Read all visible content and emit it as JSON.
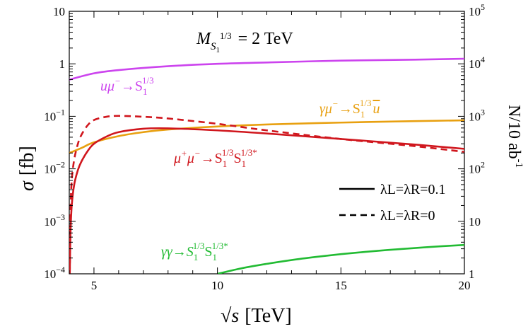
{
  "chart_data": {
    "type": "line",
    "title": "M_S1^1/3 = 2 TeV",
    "annotation": {
      "mass_label": {
        "symbol": "M",
        "sub": "S",
        "subsub": "1",
        "sup": "1/3",
        "rest": " = 2 TeV"
      }
    },
    "x_axis": {
      "label_main": "√s",
      "label_unit": "[TeV]",
      "range": [
        4,
        20
      ],
      "ticks": [
        5,
        10,
        15,
        20
      ],
      "tick_labels": [
        "5",
        "10",
        "15",
        "20"
      ]
    },
    "y_axis_left": {
      "label_main": "σ",
      "label_unit": "[fb]",
      "scale": "log",
      "range": [
        0.0001,
        10
      ],
      "ticks": [
        0.0001,
        0.001,
        0.01,
        0.1,
        1,
        10
      ],
      "tick_labels": [
        {
          "base": "10",
          "exp": "-4"
        },
        {
          "base": "10",
          "exp": "-3"
        },
        {
          "base": "10",
          "exp": "-2"
        },
        {
          "base": "10",
          "exp": "-1"
        },
        {
          "base": "1",
          "exp": ""
        },
        {
          "base": "10",
          "exp": ""
        }
      ]
    },
    "y_axis_right": {
      "label": "N/10 ab",
      "label_sup": "-1",
      "scale": "log",
      "range": [
        1,
        100000
      ],
      "ticks": [
        1,
        10,
        100,
        1000,
        10000,
        100000
      ],
      "tick_labels": [
        {
          "base": "1",
          "exp": ""
        },
        {
          "base": "10",
          "exp": ""
        },
        {
          "base": "10",
          "exp": "2"
        },
        {
          "base": "10",
          "exp": "3"
        },
        {
          "base": "10",
          "exp": "4"
        },
        {
          "base": "10",
          "exp": "5"
        }
      ]
    },
    "legend": {
      "placement": "lower-right",
      "entries": [
        {
          "style": "solid",
          "text": "λL=λR=0.1"
        },
        {
          "style": "dashed",
          "text": "λL=λR=0"
        }
      ]
    },
    "colors": {
      "magenta": "#cc44ee",
      "orange": "#e8a010",
      "red": "#d0161d",
      "green": "#22bb33"
    },
    "series": [
      {
        "key": "umu",
        "label": "uμ⁻→S₁^1/3",
        "label_parts": [
          "uμ",
          "−",
          "→S",
          "1",
          "1/3"
        ],
        "color": "#cc44ee",
        "style": "solid",
        "x": [
          4,
          5,
          6,
          8,
          10,
          12,
          15,
          18,
          20
        ],
        "y": [
          0.5,
          0.66,
          0.76,
          0.9,
          1.0,
          1.06,
          1.15,
          1.2,
          1.25
        ]
      },
      {
        "key": "gammamu",
        "label": "γμ⁻→S₁^1/3 ū",
        "label_parts": [
          "γμ",
          "−",
          "→S",
          "1",
          "1/3",
          "u"
        ],
        "color": "#e8a010",
        "style": "solid",
        "x": [
          4,
          4.5,
          5,
          6,
          7,
          8,
          10,
          12,
          15,
          18,
          20
        ],
        "y": [
          0.02,
          0.025,
          0.032,
          0.042,
          0.05,
          0.056,
          0.064,
          0.07,
          0.076,
          0.081,
          0.084
        ]
      },
      {
        "key": "mumu_solid",
        "label": "μ⁺μ⁻→S₁^1/3 S₁^1/3*",
        "label_parts": [
          "μ",
          "+",
          "μ",
          "−",
          "→S",
          "1",
          "1/3",
          "S",
          "1",
          "1/3*"
        ],
        "color": "#d0161d",
        "style": "solid",
        "x": [
          4.02,
          4.05,
          4.1,
          4.2,
          4.35,
          4.5,
          4.75,
          5,
          5.5,
          6,
          7,
          8,
          10,
          12,
          15,
          18,
          20
        ],
        "y": [
          0.0001,
          0.0006,
          0.002,
          0.005,
          0.0095,
          0.014,
          0.022,
          0.03,
          0.041,
          0.05,
          0.058,
          0.059,
          0.054,
          0.047,
          0.037,
          0.029,
          0.024
        ]
      },
      {
        "key": "mumu_dashed",
        "label": "",
        "color": "#d0161d",
        "style": "dashed",
        "x": [
          4.02,
          4.05,
          4.1,
          4.2,
          4.35,
          4.5,
          4.75,
          5,
          5.5,
          6,
          7,
          8,
          10,
          12,
          15,
          18,
          20
        ],
        "y": [
          0.0001,
          0.0015,
          0.006,
          0.015,
          0.03,
          0.045,
          0.068,
          0.085,
          0.098,
          0.102,
          0.098,
          0.091,
          0.072,
          0.054,
          0.037,
          0.027,
          0.021
        ]
      },
      {
        "key": "gammagamma",
        "label": "γγ→S₁^1/3 S₁^1/3*",
        "label_parts": [
          "γγ→S",
          "1",
          "1/3",
          "S",
          "1",
          "1/3*"
        ],
        "color": "#22bb33",
        "style": "solid",
        "x": [
          10,
          11,
          12,
          13,
          14,
          15,
          16,
          17,
          18,
          19,
          20
        ],
        "y": [
          0.0001,
          0.000128,
          0.000155,
          0.000183,
          0.00021,
          0.000237,
          0.000262,
          0.000287,
          0.00031,
          0.000333,
          0.000355
        ]
      }
    ]
  }
}
